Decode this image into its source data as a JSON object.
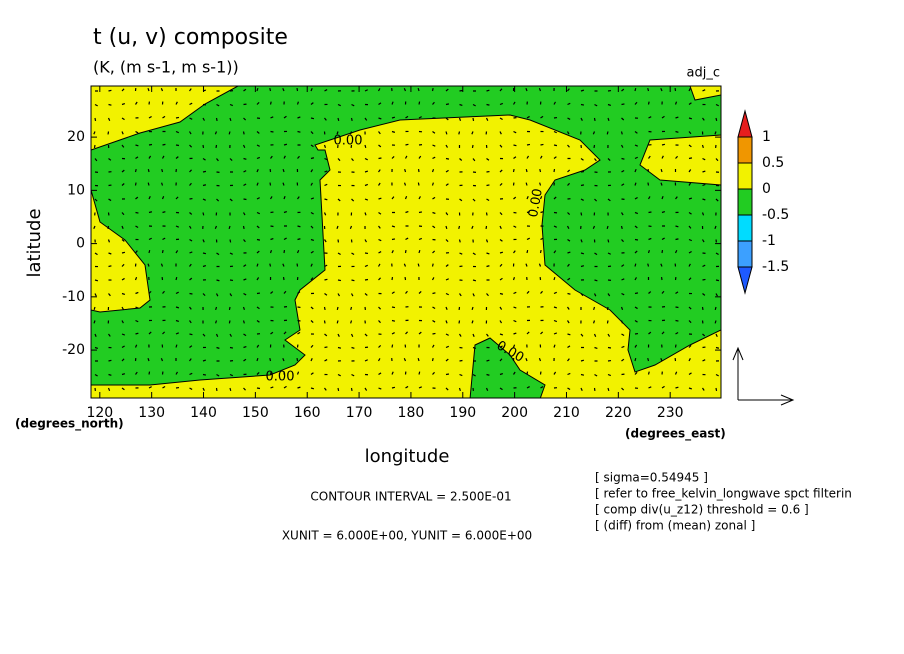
{
  "chart_data": {
    "type": "contour",
    "title": "t (u, v) composite",
    "subtitle": "(K, (m s-1, m s-1))",
    "corner_label": "adj_c",
    "x_label": "longitude",
    "y_label": "latitude",
    "x_unit_label": "(degrees_east)",
    "y_unit_label": "(degrees_north)",
    "xlim": [
      118.3,
      239.8
    ],
    "ylim": [
      -29,
      29.6
    ],
    "xticks": [
      120,
      130,
      140,
      150,
      160,
      170,
      180,
      190,
      200,
      210,
      220,
      230
    ],
    "yticks": [
      -20,
      -10,
      0,
      10,
      20
    ],
    "colorbar": {
      "levels": [
        -1.5,
        -1,
        -0.5,
        0,
        0.5,
        1
      ],
      "colors": [
        "#1e5aff",
        "#3ca0ff",
        "#00dcff",
        "#22cc22",
        "#f2f200",
        "#f09600",
        "#e61e1e"
      ]
    },
    "contour_labels": [
      "0.00",
      "0.00",
      "0.00",
      "0.00"
    ],
    "notes": [
      "CONTOUR INTERVAL = 2.500E-01",
      "XUNIT = 6.000E+00, YUNIT = 6.000E+00"
    ],
    "info": [
      "[ sigma=0.54945 ]",
      "[ refer to free_kelvin_longwave spct filterin",
      "[ comp div(u_z12) threshold = 0.6 ]",
      "[ (diff) from (mean) zonal ]"
    ]
  }
}
